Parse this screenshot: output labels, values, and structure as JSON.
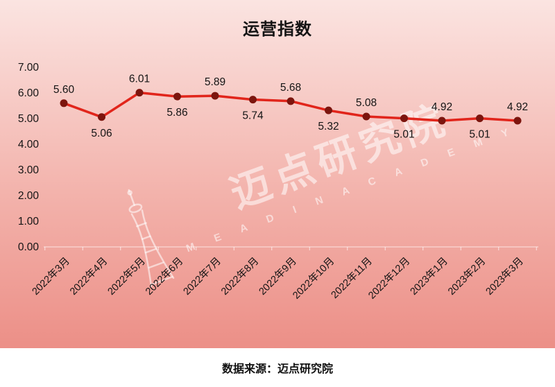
{
  "title": "运营指数",
  "footer": {
    "source": "数据来源：迈点研究院"
  },
  "watermark": {
    "cn": "迈点研究院",
    "en": "M E A D I N   A C A D E M Y",
    "icon": "tower-icon"
  },
  "colors": {
    "line": "#e1251b",
    "marker": "#7c150e",
    "bg_top": "#fbe4e1",
    "bg_bottom": "#ec8f87",
    "axis": "rgba(255,255,255,0.7)",
    "text": "#141414",
    "watermark": "rgba(255,255,255,0.55)"
  },
  "chart_data": {
    "type": "line",
    "title": "运营指数",
    "categories": [
      "2022年3月",
      "2022年4月",
      "2022年5月",
      "2022年6月",
      "2022年7月",
      "2022年8月",
      "2022年9月",
      "2022年10月",
      "2022年11月",
      "2022年12月",
      "2023年1月",
      "2023年2月",
      "2023年3月"
    ],
    "values": [
      5.6,
      5.06,
      6.01,
      5.86,
      5.89,
      5.74,
      5.68,
      5.32,
      5.08,
      5.01,
      4.92,
      5.01,
      4.92
    ],
    "label_side": [
      "above",
      "below",
      "above",
      "below",
      "above",
      "below",
      "above",
      "below",
      "above",
      "below",
      "above",
      "below",
      "above"
    ],
    "ylim": [
      0,
      7
    ],
    "ytick_step": 1,
    "ytick_format_decimals": 2,
    "grid": false,
    "legend": "none",
    "xlabel": "",
    "ylabel": ""
  }
}
